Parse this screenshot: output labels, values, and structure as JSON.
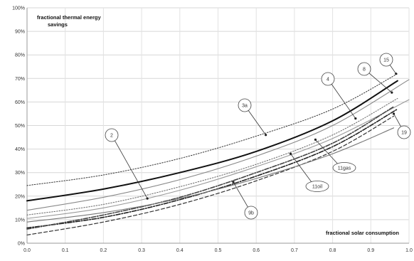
{
  "chart_data": {
    "type": "line",
    "ylabel_lines": [
      "fractional thermal energy",
      "savings"
    ],
    "xlabel": "fractional solar consumption",
    "xlim": [
      0.0,
      1.0
    ],
    "ylim": [
      0,
      100
    ],
    "x_ticks": [
      "0.0",
      "0.1",
      "0.2",
      "0.3",
      "0.4",
      "0.5",
      "0.6",
      "0.7",
      "0.8",
      "0.9",
      "1.0"
    ],
    "y_ticks": [
      "0%",
      "10%",
      "20%",
      "30%",
      "40%",
      "50%",
      "60%",
      "70%",
      "80%",
      "90%",
      "100%"
    ],
    "grid": true,
    "series": [
      {
        "id": "15",
        "style": "dotted",
        "color": "#333333",
        "x": [
          0.0,
          0.2,
          0.4,
          0.6,
          0.8,
          0.97
        ],
        "y": [
          24.5,
          29.0,
          36.0,
          45.5,
          57.0,
          72.0
        ]
      },
      {
        "id": "3a",
        "style": "bold",
        "color": "#111111",
        "x": [
          0.0,
          0.2,
          0.4,
          0.6,
          0.8,
          0.97
        ],
        "y": [
          18.0,
          23.0,
          30.0,
          39.0,
          52.0,
          69.0
        ]
      },
      {
        "id": "4",
        "style": "solid",
        "color": "#888888",
        "x": [
          0.0,
          0.2,
          0.4,
          0.6,
          0.8,
          1.0
        ],
        "y": [
          14.0,
          19.5,
          27.0,
          37.0,
          50.0,
          69.5
        ]
      },
      {
        "id": "8",
        "style": "solid",
        "color": "#999999",
        "x": [
          0.0,
          0.2,
          0.4,
          0.6,
          0.8,
          1.0
        ],
        "y": [
          10.5,
          15.0,
          22.5,
          32.5,
          44.5,
          61.0
        ]
      },
      {
        "id": "11gas",
        "style": "dashdot",
        "color": "#222222",
        "x": [
          0.0,
          0.2,
          0.4,
          0.6,
          0.8,
          0.97
        ],
        "y": [
          6.5,
          11.0,
          18.5,
          28.5,
          41.0,
          57.0
        ]
      },
      {
        "id": "11oil",
        "style": "dashed",
        "color": "#333333",
        "x": [
          0.0,
          0.2,
          0.4,
          0.6,
          0.8,
          0.96
        ],
        "y": [
          3.5,
          9.0,
          16.5,
          26.5,
          39.0,
          54.0
        ]
      },
      {
        "id": "2",
        "style": "dashdot",
        "color": "#444444",
        "x": [
          0.0,
          0.2,
          0.4,
          0.6,
          0.8,
          0.96
        ],
        "y": [
          6.0,
          12.0,
          19.5,
          30.0,
          42.5,
          58.0
        ]
      },
      {
        "id": "9b",
        "style": "dotted",
        "color": "#666666",
        "x": [
          0.0,
          0.2,
          0.4,
          0.6,
          0.8,
          0.97
        ],
        "y": [
          12.0,
          16.5,
          24.0,
          33.5,
          46.0,
          61.5
        ]
      },
      {
        "id": "19",
        "style": "solid",
        "color": "#777777",
        "x": [
          0.0,
          0.2,
          0.4,
          0.6,
          0.8,
          0.96
        ],
        "y": [
          9.0,
          13.0,
          19.0,
          27.5,
          38.0,
          49.0
        ]
      }
    ],
    "annotations": [
      {
        "text": "15",
        "shape": "circle",
        "points_to": [
          0.966,
          72
        ]
      },
      {
        "text": "8",
        "shape": "circle",
        "points_to": [
          0.955,
          64
        ]
      },
      {
        "text": "4",
        "shape": "circle",
        "points_to": [
          0.86,
          53
        ]
      },
      {
        "text": "3a",
        "shape": "circle",
        "points_to": [
          0.625,
          46
        ]
      },
      {
        "text": "2",
        "shape": "circle",
        "points_to": [
          0.315,
          19
        ]
      },
      {
        "text": "11gas",
        "shape": "ellipse",
        "points_to": [
          0.755,
          44
        ]
      },
      {
        "text": "11oil",
        "shape": "ellipse",
        "points_to": [
          0.69,
          38
        ]
      },
      {
        "text": "9b",
        "shape": "circle",
        "points_to": [
          0.54,
          26
        ]
      },
      {
        "text": "19",
        "shape": "circle",
        "points_to": [
          0.96,
          55
        ]
      }
    ]
  }
}
